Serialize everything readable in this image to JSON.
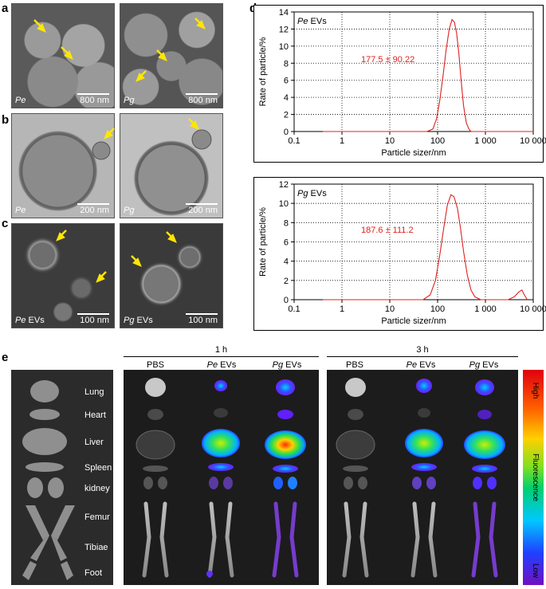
{
  "panels": {
    "a": "a",
    "b": "b",
    "c": "c",
    "d": "d",
    "e": "e"
  },
  "em_panels": {
    "a_left": {
      "label": "Pe",
      "scale": "800 nm"
    },
    "a_right": {
      "label": "Pg",
      "scale": "800 nm"
    },
    "b_left": {
      "label": "Pe",
      "scale": "200 nm"
    },
    "b_right": {
      "label": "Pg",
      "scale": "200 nm"
    },
    "c_left": {
      "label_italic": "Pe",
      "label_rest": " EVs",
      "scale": "100 nm"
    },
    "c_right": {
      "label_italic": "Pg",
      "label_rest": " EVs",
      "scale": "100 nm"
    }
  },
  "chart_data": [
    {
      "type": "line",
      "title_italic": "Pe",
      "title_rest": " EVs",
      "annotation": "177.5 ± 90.22",
      "xlabel": "Particle sizer/nm",
      "ylabel": "Rate of particle/%",
      "x_scale": "log",
      "xlim": [
        0.1,
        10000
      ],
      "ylim": [
        0,
        14
      ],
      "x_ticks": [
        "0.1",
        "1",
        "10",
        "100",
        "1 000",
        "10 000"
      ],
      "y_ticks": [
        "0",
        "2",
        "4",
        "6",
        "8",
        "10",
        "12",
        "14"
      ],
      "grid": "dotted",
      "series": [
        {
          "color": "#e02020",
          "x": [
            0.4,
            60,
            80,
            95,
            110,
            130,
            150,
            175,
            200,
            225,
            250,
            280,
            310,
            350,
            400,
            450,
            500,
            800,
            10000
          ],
          "y": [
            0,
            0,
            0.3,
            1.5,
            3.5,
            6.5,
            9.5,
            12,
            13.1,
            12.8,
            11.5,
            9,
            6,
            3,
            1,
            0.3,
            0,
            0,
            0
          ]
        }
      ]
    },
    {
      "type": "line",
      "title_italic": "Pg",
      "title_rest": " EVs",
      "annotation": "187.6 ± 111.2",
      "xlabel": "Particle sizer/nm",
      "ylabel": "Rate of particle/%",
      "x_scale": "log",
      "xlim": [
        0.1,
        10000
      ],
      "ylim": [
        0,
        12
      ],
      "x_ticks": [
        "0.1",
        "1",
        "10",
        "100",
        "1 000",
        "10 000"
      ],
      "y_ticks": [
        "0",
        "2",
        "4",
        "6",
        "8",
        "10",
        "12"
      ],
      "grid": "dotted",
      "series": [
        {
          "color": "#e02020",
          "x": [
            0.4,
            50,
            70,
            90,
            110,
            135,
            160,
            190,
            220,
            260,
            300,
            350,
            420,
            500,
            600,
            800,
            3000,
            4000,
            5000,
            5800,
            6500,
            7500
          ],
          "y": [
            0,
            0,
            0.5,
            2,
            4.5,
            7.5,
            9.8,
            10.9,
            10.7,
            9.5,
            7.5,
            5,
            2.5,
            1,
            0.3,
            0,
            0,
            0.3,
            0.8,
            1,
            0.5,
            0
          ]
        }
      ]
    }
  ],
  "panel_e": {
    "time_1h": "1 h",
    "time_3h": "3 h",
    "columns_1h": [
      {
        "italic": "",
        "rest": "PBS"
      },
      {
        "italic": "Pe",
        "rest": " EVs"
      },
      {
        "italic": "Pg",
        "rest": " EVs"
      }
    ],
    "columns_3h": [
      {
        "italic": "",
        "rest": "PBS"
      },
      {
        "italic": "Pe",
        "rest": " EVs"
      },
      {
        "italic": "Pg",
        "rest": " EVs"
      }
    ],
    "organs": [
      "Lung",
      "Heart",
      "Liver",
      "Spleen",
      "kidney",
      "Femur",
      "Tibiae",
      "Foot"
    ],
    "colorbar": {
      "high": "High",
      "low": "Low",
      "title": "Fluorescence"
    }
  }
}
